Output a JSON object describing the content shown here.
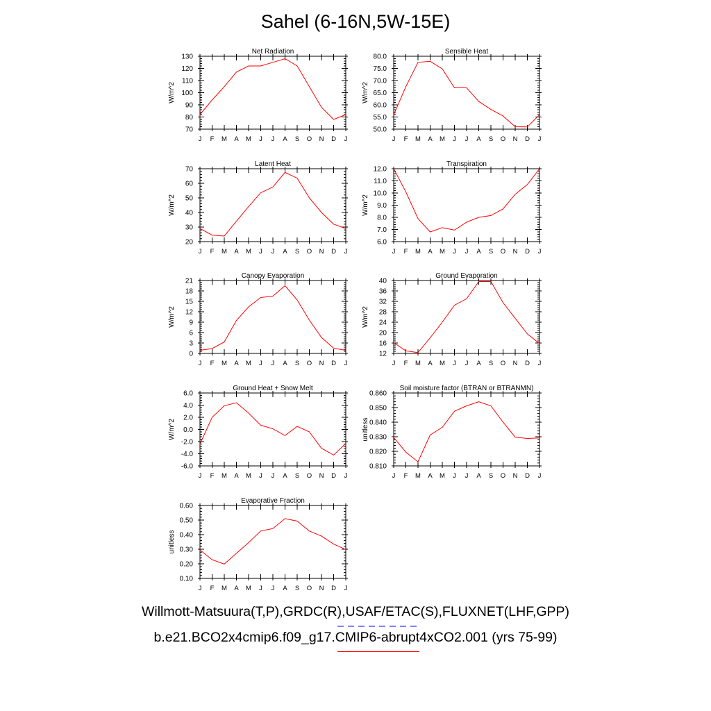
{
  "page": {
    "title": "Sahel (6-16N,5W-15E)",
    "legend": [
      {
        "label": "Willmott-Matsuura(T,P),GRDC(R),USAF/ETAC(S),FLUXNET(LHF,GPP)",
        "color": "#0000ff",
        "style": "dashed"
      },
      {
        "label": "b.e21.BCO2x4cmip6.f09_g17.CMIP6-abrupt4xCO2.001 (yrs 75-99)",
        "color": "#ff0000",
        "style": "solid"
      }
    ]
  },
  "chart_data": [
    {
      "type": "line",
      "title": "Net Radiation",
      "ylabel": "W/m^2",
      "categories": [
        "J",
        "F",
        "M",
        "A",
        "M",
        "J",
        "J",
        "A",
        "S",
        "O",
        "N",
        "D",
        "J"
      ],
      "ylim": [
        70,
        130
      ],
      "yticks": [
        70,
        80,
        90,
        100,
        110,
        120,
        130
      ],
      "yticklabels": [
        "70",
        "80",
        "90",
        "100",
        "110",
        "120",
        "130"
      ],
      "series": [
        {
          "color": "#ff0000",
          "values": [
            82,
            94,
            105,
            117,
            122,
            122,
            125,
            128,
            122,
            105,
            88,
            78,
            82
          ]
        }
      ]
    },
    {
      "type": "line",
      "title": "Sensible Heat",
      "ylabel": "W/m^2",
      "categories": [
        "J",
        "F",
        "M",
        "A",
        "M",
        "J",
        "J",
        "A",
        "S",
        "O",
        "N",
        "D",
        "J"
      ],
      "ylim": [
        50,
        80
      ],
      "yticks": [
        50,
        55,
        60,
        65,
        70,
        75,
        80
      ],
      "yticklabels": [
        "50.0",
        "55.0",
        "60.0",
        "65.0",
        "70.0",
        "75.0",
        "80.0"
      ],
      "series": [
        {
          "color": "#ff0000",
          "values": [
            55.9,
            67.5,
            77.5,
            77.9,
            74.8,
            67.0,
            67.0,
            61.4,
            58.1,
            55.4,
            51.0,
            50.9,
            55.9
          ]
        }
      ]
    },
    {
      "type": "line",
      "title": "Latent Heat",
      "ylabel": "W/m^2",
      "categories": [
        "J",
        "F",
        "M",
        "A",
        "M",
        "J",
        "J",
        "A",
        "S",
        "O",
        "N",
        "D",
        "J"
      ],
      "ylim": [
        20,
        70
      ],
      "yticks": [
        20,
        30,
        40,
        50,
        60,
        70
      ],
      "yticklabels": [
        "20",
        "30",
        "40",
        "50",
        "60",
        "70"
      ],
      "series": [
        {
          "color": "#ff0000",
          "values": [
            29,
            24.5,
            23.8,
            34,
            44,
            53.5,
            57.5,
            67.5,
            63.5,
            50,
            40,
            32,
            29
          ]
        }
      ]
    },
    {
      "type": "line",
      "title": "Transpiration",
      "ylabel": "W/m^2",
      "categories": [
        "J",
        "F",
        "M",
        "A",
        "M",
        "J",
        "J",
        "A",
        "S",
        "O",
        "N",
        "D",
        "J"
      ],
      "ylim": [
        6,
        12
      ],
      "yticks": [
        6,
        7,
        8,
        9,
        10,
        11,
        12
      ],
      "yticklabels": [
        "6.0",
        "7.0",
        "8.0",
        "9.0",
        "10.0",
        "11.0",
        "12.0"
      ],
      "series": [
        {
          "color": "#ff0000",
          "values": [
            12.0,
            10.1,
            7.9,
            6.8,
            7.15,
            6.95,
            7.6,
            8.0,
            8.15,
            8.7,
            9.9,
            10.7,
            12.0
          ]
        }
      ]
    },
    {
      "type": "line",
      "title": "Canopy Evaporation",
      "ylabel": "W/m^2",
      "categories": [
        "J",
        "F",
        "M",
        "A",
        "M",
        "J",
        "J",
        "A",
        "S",
        "O",
        "N",
        "D",
        "J"
      ],
      "ylim": [
        0,
        21
      ],
      "yticks": [
        0,
        3,
        6,
        9,
        12,
        15,
        18,
        21
      ],
      "yticklabels": [
        "0",
        "3",
        "6",
        "9",
        "12",
        "15",
        "18",
        "21"
      ],
      "series": [
        {
          "color": "#ff0000",
          "values": [
            0.9,
            1.4,
            3.3,
            9.5,
            13.4,
            16.1,
            16.5,
            19.5,
            15.4,
            9.6,
            4.6,
            1.5,
            0.9
          ]
        }
      ]
    },
    {
      "type": "line",
      "title": "Ground Evaporation",
      "ylabel": "W/m^2",
      "categories": [
        "J",
        "F",
        "M",
        "A",
        "M",
        "J",
        "J",
        "A",
        "S",
        "O",
        "N",
        "D",
        "J"
      ],
      "ylim": [
        12,
        40
      ],
      "yticks": [
        12,
        16,
        20,
        24,
        28,
        32,
        36,
        40
      ],
      "yticklabels": [
        "12",
        "16",
        "20",
        "24",
        "28",
        "32",
        "36",
        "40"
      ],
      "series": [
        {
          "color": "#ff0000",
          "values": [
            16.2,
            13.0,
            12.3,
            18.0,
            24.0,
            30.5,
            33.0,
            39.6,
            39.6,
            31.5,
            25.5,
            19.5,
            15.8
          ]
        }
      ]
    },
    {
      "type": "line",
      "title": "Ground Heat + Snow Melt",
      "ylabel": "W/m^2",
      "categories": [
        "J",
        "F",
        "M",
        "A",
        "M",
        "J",
        "J",
        "A",
        "S",
        "O",
        "N",
        "D",
        "J"
      ],
      "ylim": [
        -6,
        6
      ],
      "yticks": [
        -6,
        -4,
        -2,
        0,
        2,
        4,
        6
      ],
      "yticklabels": [
        "-6.0",
        "-4.0",
        "-2.0",
        "0.0",
        "2.0",
        "4.0",
        "6.0"
      ],
      "series": [
        {
          "color": "#ff0000",
          "values": [
            -2.4,
            2.0,
            3.9,
            4.4,
            2.7,
            0.7,
            0.1,
            -1.0,
            0.5,
            -0.4,
            -3.1,
            -4.2,
            -2.3
          ]
        }
      ]
    },
    {
      "type": "line",
      "title": "Soil moisture factor (BTRAN or BTRANMN)",
      "ylabel": "unitless",
      "categories": [
        "J",
        "F",
        "M",
        "A",
        "M",
        "J",
        "J",
        "A",
        "S",
        "O",
        "N",
        "D",
        "J"
      ],
      "ylim": [
        0.81,
        0.86
      ],
      "yticks": [
        0.81,
        0.82,
        0.83,
        0.84,
        0.85,
        0.86
      ],
      "yticklabels": [
        "0.810",
        "0.820",
        "0.830",
        "0.840",
        "0.850",
        "0.860"
      ],
      "series": [
        {
          "color": "#ff0000",
          "values": [
            0.8295,
            0.8195,
            0.8128,
            0.8312,
            0.8365,
            0.8475,
            0.8512,
            0.854,
            0.8512,
            0.84,
            0.8297,
            0.8288,
            0.8292
          ]
        }
      ]
    },
    {
      "type": "line",
      "title": "Evaporative Fraction",
      "ylabel": "unitless",
      "categories": [
        "J",
        "F",
        "M",
        "A",
        "M",
        "J",
        "J",
        "A",
        "S",
        "O",
        "N",
        "D",
        "J"
      ],
      "ylim": [
        0.1,
        0.6
      ],
      "yticks": [
        0.1,
        0.2,
        0.3,
        0.4,
        0.5,
        0.6
      ],
      "yticklabels": [
        "0.10",
        "0.20",
        "0.30",
        "0.40",
        "0.50",
        "0.60"
      ],
      "series": [
        {
          "color": "#ff0000",
          "values": [
            0.295,
            0.228,
            0.198,
            0.272,
            0.345,
            0.425,
            0.442,
            0.51,
            0.493,
            0.425,
            0.39,
            0.335,
            0.298
          ]
        }
      ]
    }
  ]
}
